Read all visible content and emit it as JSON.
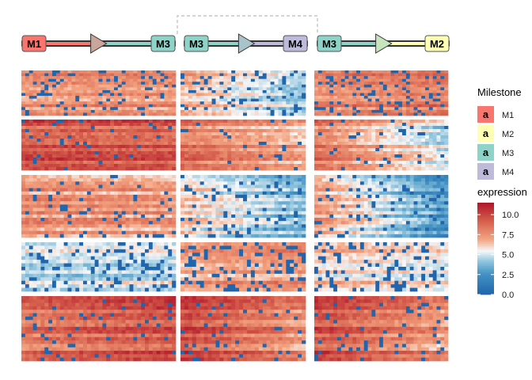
{
  "chart_data": {
    "type": "heatmap",
    "title": "",
    "trajectory": {
      "segments": [
        {
          "from": "M1",
          "to": "M3"
        },
        {
          "from": "M3",
          "to": "M4"
        },
        {
          "from": "M3",
          "to": "M2"
        }
      ]
    },
    "milestone_legend": {
      "title": "Milestone",
      "glyph": "a",
      "items": [
        {
          "name": "M1",
          "color": "#F8766D"
        },
        {
          "name": "M2",
          "color": "#FFFFB3"
        },
        {
          "name": "M3",
          "color": "#8DD3C7"
        },
        {
          "name": "M4",
          "color": "#BEBADA"
        }
      ]
    },
    "color_scale": {
      "title": "expression",
      "min": 0,
      "max": 11.5,
      "ticks": [
        0.0,
        2.5,
        5.0,
        7.5,
        10.0
      ],
      "tick_labels": [
        "0.0",
        "2.5",
        "5.0",
        "7.5",
        "10.0"
      ],
      "low_color": "#2166AC",
      "mid_color": "#F7F7F7",
      "high_color": "#B2182B"
    },
    "blocks": [
      {
        "rows": 16,
        "pattern": [
          [
            7.5,
            7.5
          ],
          [
            6.8,
            4.2
          ],
          [
            7.8,
            8.3
          ]
        ],
        "sparsity": 0.14
      },
      {
        "rows": 16,
        "pattern": [
          [
            9.4,
            9.2
          ],
          [
            8.4,
            6.6
          ],
          [
            8.2,
            4.6
          ]
        ],
        "sparsity": 0.06
      },
      {
        "rows": 19,
        "pattern": [
          [
            7.6,
            7.2
          ],
          [
            6.2,
            3.6
          ],
          [
            7.2,
            2.5
          ]
        ],
        "sparsity": 0.1
      },
      {
        "rows": 14,
        "pattern": [
          [
            4.8,
            5.0
          ],
          [
            7.0,
            7.6
          ],
          [
            6.4,
            5.4
          ]
        ],
        "sparsity": 0.18
      },
      {
        "rows": 19,
        "pattern": [
          [
            8.4,
            9.6
          ],
          [
            9.8,
            7.4
          ],
          [
            9.6,
            7.2
          ]
        ],
        "sparsity": 0.06
      }
    ],
    "columns": {
      "segment_1": 40,
      "segment_2": 32,
      "segment_3": 35
    }
  }
}
